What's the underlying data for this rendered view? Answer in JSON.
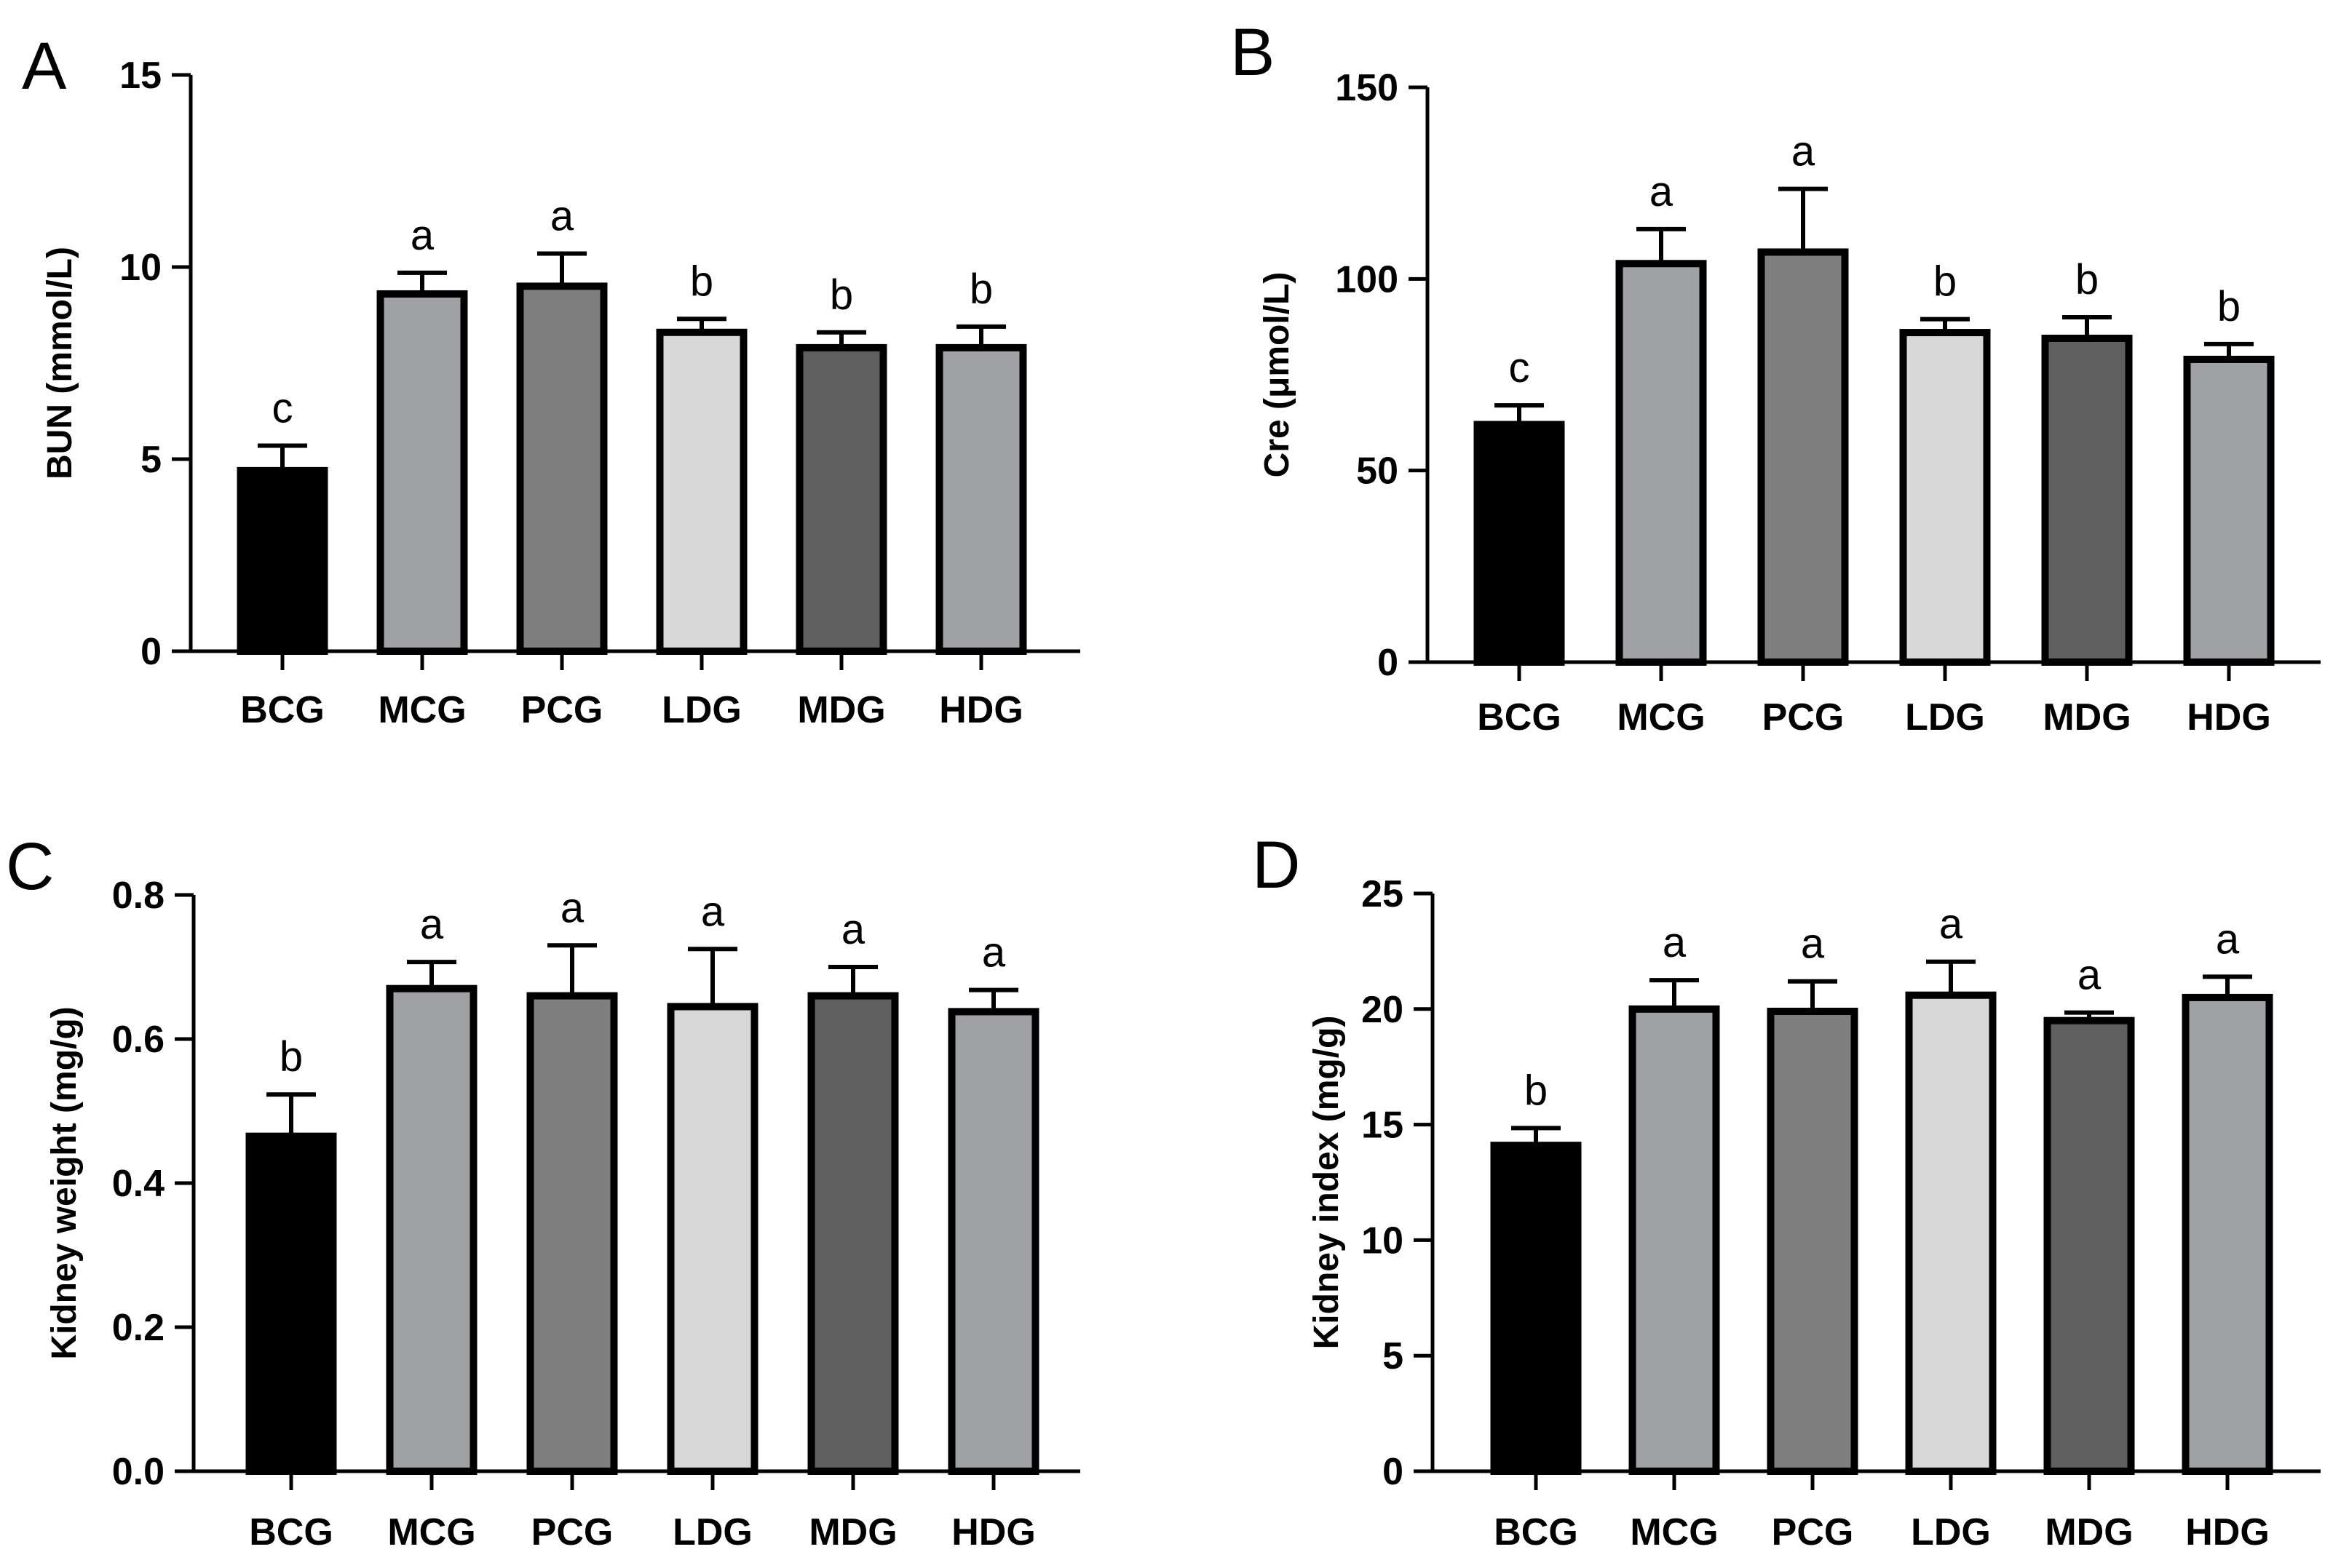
{
  "chart_data": [
    {
      "type": "bar",
      "panel": "A",
      "ylabel": "BUN (mmol/L)",
      "ylim": [
        0,
        15
      ],
      "yticks": [
        0,
        5,
        10,
        15
      ],
      "categories": [
        "BCG",
        "MCG",
        "PCG",
        "LDG",
        "MDG",
        "HDG"
      ],
      "values": [
        4.7,
        9.3,
        9.5,
        8.3,
        7.9,
        7.9
      ],
      "errors": [
        0.65,
        0.55,
        0.85,
        0.35,
        0.4,
        0.55
      ],
      "significance": [
        "c",
        "a",
        "a",
        "b",
        "b",
        "b"
      ]
    },
    {
      "type": "bar",
      "panel": "B",
      "ylabel": "Cre (μmol/L)",
      "ylim": [
        0,
        150
      ],
      "yticks": [
        0,
        50,
        100,
        150
      ],
      "categories": [
        "BCG",
        "MCG",
        "PCG",
        "LDG",
        "MDG",
        "HDG"
      ],
      "values": [
        62,
        104,
        107,
        86,
        84.5,
        79
      ],
      "errors": [
        5,
        9,
        16.5,
        3.5,
        5.5,
        4
      ],
      "significance": [
        "c",
        "a",
        "a",
        "b",
        "b",
        "b"
      ]
    },
    {
      "type": "bar",
      "panel": "C",
      "ylabel": "Kidney weight (mg/g)",
      "ylim": [
        0,
        0.8
      ],
      "yticks": [
        "0.0",
        "0.2",
        "0.4",
        "0.6",
        "0.8"
      ],
      "categories": [
        "BCG",
        "MCG",
        "PCG",
        "LDG",
        "MDG",
        "HDG"
      ],
      "values": [
        0.465,
        0.67,
        0.66,
        0.645,
        0.66,
        0.638
      ],
      "errors": [
        0.058,
        0.037,
        0.07,
        0.08,
        0.04,
        0.03
      ],
      "significance": [
        "b",
        "a",
        "a",
        "a",
        "a",
        "a"
      ]
    },
    {
      "type": "bar",
      "panel": "D",
      "ylabel": "Kidney index (mg/g)",
      "ylim": [
        0,
        25
      ],
      "yticks": [
        0,
        5,
        10,
        15,
        20,
        25
      ],
      "categories": [
        "BCG",
        "MCG",
        "PCG",
        "LDG",
        "MDG",
        "HDG"
      ],
      "values": [
        14.1,
        20,
        19.9,
        20.6,
        19.5,
        20.5
      ],
      "errors": [
        0.75,
        1.25,
        1.3,
        1.45,
        0.35,
        0.9
      ],
      "significance": [
        "b",
        "a",
        "a",
        "a",
        "a",
        "a"
      ]
    }
  ],
  "bar_colors": [
    "#000000",
    "#a0a1a5",
    "#7f7f7f",
    "#d7d7d7",
    "#5f5f5f",
    "#a0a1a5"
  ]
}
